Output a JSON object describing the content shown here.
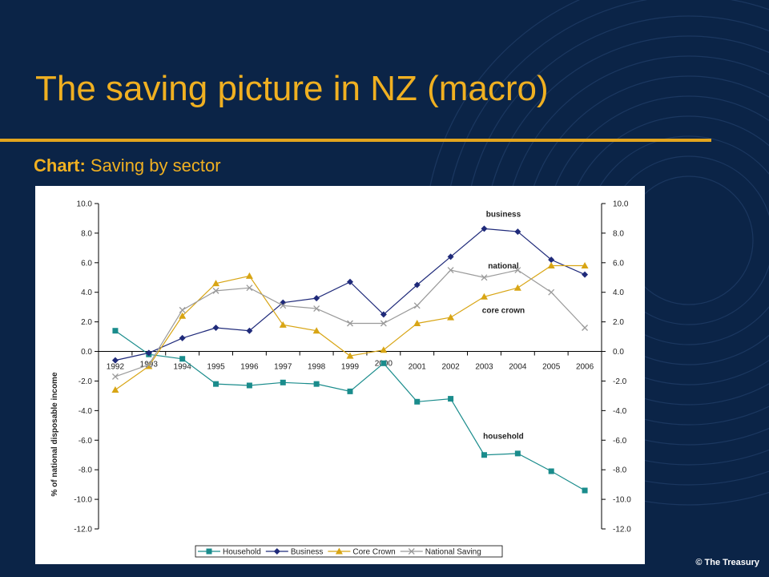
{
  "slide": {
    "title": "The saving picture in NZ (macro)",
    "subtitle_prefix": "Chart:",
    "subtitle_text": " Saving by sector",
    "copyright": "© The Treasury"
  },
  "colors": {
    "background": "#0b2447",
    "accent": "#f0b021",
    "household": "#1a8c8c",
    "business": "#1f2a7a",
    "core_crown": "#d8a514",
    "national": "#9a9a9a"
  },
  "chart_data": {
    "type": "line",
    "title": "",
    "xlabel": "",
    "ylabel": "% of national disposable income",
    "ylim": [
      -12,
      10
    ],
    "yticks": [
      "10.0",
      "8.0",
      "6.0",
      "4.0",
      "2.0",
      "0.0",
      "-2.0",
      "-4.0",
      "-6.0",
      "-8.0",
      "-10.0",
      "-12.0"
    ],
    "categories": [
      "1992",
      "1993",
      "1994",
      "1995",
      "1996",
      "1997",
      "1998",
      "1999",
      "2000",
      "2001",
      "2002",
      "2003",
      "2004",
      "2005",
      "2006"
    ],
    "legend_position": "bottom",
    "series": [
      {
        "name": "Household",
        "marker": "square",
        "color": "#1a8c8c",
        "values": [
          1.4,
          -0.2,
          -0.5,
          -2.2,
          -2.3,
          -2.1,
          -2.2,
          -2.7,
          -0.8,
          -3.4,
          -3.2,
          -7.0,
          -6.9,
          -8.1,
          -9.4
        ]
      },
      {
        "name": "Business",
        "marker": "diamond",
        "color": "#1f2a7a",
        "values": [
          -0.6,
          -0.1,
          0.9,
          1.6,
          1.4,
          3.3,
          3.6,
          4.7,
          2.5,
          4.5,
          6.4,
          8.3,
          8.1,
          6.2,
          5.2
        ]
      },
      {
        "name": "Core Crown",
        "marker": "triangle",
        "color": "#d8a514",
        "values": [
          -2.6,
          -1.0,
          2.4,
          4.6,
          5.1,
          1.8,
          1.4,
          -0.3,
          0.1,
          1.9,
          2.3,
          3.7,
          4.3,
          5.8,
          5.8
        ]
      },
      {
        "name": "National Saving",
        "marker": "x",
        "color": "#9a9a9a",
        "values": [
          -1.7,
          -0.9,
          2.8,
          4.1,
          4.3,
          3.1,
          2.9,
          1.9,
          1.9,
          3.1,
          5.5,
          5.0,
          5.5,
          4.0,
          1.6
        ]
      }
    ],
    "annotations": [
      {
        "text": "business",
        "category": "2003",
        "value": 9.1
      },
      {
        "text": "national",
        "category": "2003",
        "value": 5.6
      },
      {
        "text": "core crown",
        "category": "2003",
        "value": 2.6
      },
      {
        "text": "household",
        "category": "2003",
        "value": -5.9
      }
    ]
  }
}
